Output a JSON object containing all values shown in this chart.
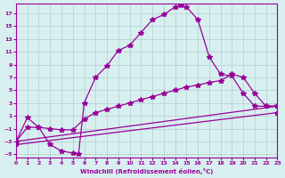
{
  "xlabel": "Windchill (Refroidissement éolien,°C)",
  "bg_color": "#d8eff0",
  "grid_color": "#b0ccd0",
  "line_color": "#990099",
  "xlim": [
    0,
    23
  ],
  "ylim": [
    -5.5,
    18.5
  ],
  "yticks": [
    -5,
    -3,
    -1,
    1,
    3,
    5,
    7,
    9,
    11,
    13,
    15,
    17
  ],
  "xticks": [
    0,
    1,
    2,
    3,
    4,
    5,
    6,
    7,
    8,
    9,
    10,
    11,
    12,
    13,
    14,
    15,
    16,
    17,
    18,
    19,
    20,
    21,
    22,
    23
  ],
  "line1_x": [
    0,
    1,
    2,
    3,
    4,
    5,
    5.5,
    6,
    7,
    8,
    9,
    10,
    11,
    12,
    13,
    14,
    14.5,
    15,
    16,
    17,
    18,
    19,
    20,
    21,
    22,
    23
  ],
  "line1_y": [
    -3,
    0.7,
    -0.8,
    -3.5,
    -4.5,
    -4.8,
    -5,
    3.0,
    7.0,
    8.8,
    11.2,
    12.0,
    14.0,
    16.0,
    16.8,
    18.0,
    18.2,
    18.0,
    16.0,
    10.2,
    7.5,
    7.2,
    4.5,
    2.5,
    2.5,
    2.5
  ],
  "line2_x": [
    0,
    1,
    2,
    3,
    4,
    5,
    6,
    7,
    8,
    9,
    10,
    11,
    12,
    13,
    14,
    15,
    16,
    17,
    18,
    19,
    20,
    21,
    22,
    23
  ],
  "line2_y": [
    -3,
    -0.8,
    -0.8,
    -1.0,
    -1.2,
    -1.2,
    0.5,
    1.5,
    2.0,
    2.5,
    3.0,
    3.5,
    4.0,
    4.5,
    5.0,
    5.5,
    5.8,
    6.2,
    6.5,
    7.5,
    7.0,
    4.5,
    2.5,
    2.5
  ],
  "line3_x": [
    0,
    23
  ],
  "line3_y": [
    -3.0,
    2.5
  ],
  "line4_x": [
    0,
    23
  ],
  "line4_y": [
    -3.5,
    1.5
  ]
}
